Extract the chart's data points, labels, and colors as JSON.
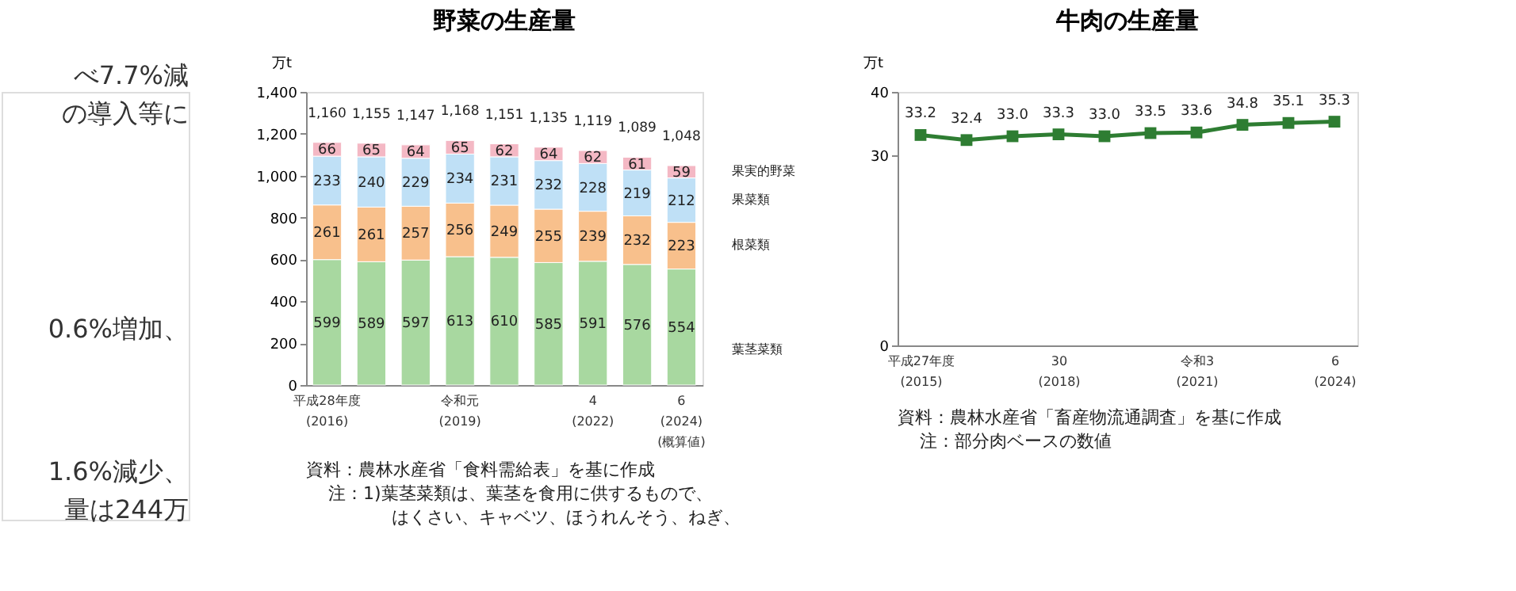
{
  "chart_data": [
    {
      "type": "other",
      "annotations": [
        "べ7.7%減",
        "の導入等に",
        "0.6%増加、",
        "1.6%減少、",
        "量は244万"
      ]
    },
    {
      "type": "bar",
      "title": "野菜の生産量",
      "ylabel": "万t",
      "stacked": true,
      "data_labels": true,
      "grid": false,
      "legend": "right",
      "categories": [
        "平成28年度\n(2016)",
        null,
        null,
        "令和元\n(2019)",
        null,
        null,
        "4\n(2022)",
        null,
        "6\n(2024)\n(概算値)"
      ],
      "ylim": [
        0,
        1400
      ],
      "yticks": [
        0,
        200,
        400,
        600,
        800,
        {
          "value": 1000,
          "label": "1,000"
        },
        {
          "value": 1200,
          "label": "1,200"
        },
        {
          "value": 1400,
          "label": "1,400"
        }
      ],
      "series": [
        {
          "name": "葉茎菜類",
          "color": "#a8d8a0",
          "values": [
            599,
            589,
            597,
            613,
            610,
            585,
            591,
            576,
            554
          ]
        },
        {
          "name": "根菜類",
          "color": "#f8c08c",
          "values": [
            261,
            261,
            257,
            256,
            249,
            255,
            239,
            232,
            223
          ]
        },
        {
          "name": "果菜類",
          "color": "#bfe0f6",
          "values": [
            233,
            240,
            229,
            234,
            231,
            232,
            228,
            219,
            212
          ]
        },
        {
          "name": "果実的野菜",
          "color": "#f4b8c4",
          "values": [
            66,
            65,
            64,
            65,
            62,
            64,
            62,
            61,
            59
          ]
        }
      ],
      "totals": [
        "1,160",
        "1,155",
        "1,147",
        "1,168",
        "1,151",
        "1,135",
        "1,119",
        "1,089",
        "1,048"
      ],
      "annotations": [
        "資料：農林水産省「食料需給表」を基に作成",
        "注：1)葉茎菜類は、葉茎を食用に供するもので、",
        "はくさい、キャベツ、ほうれんそう、ねぎ、"
      ]
    },
    {
      "type": "line",
      "title": "牛肉の生産量",
      "ylabel": "万t",
      "data_labels": true,
      "grid": false,
      "marker": "square",
      "line_style": "solid",
      "categories": [
        "平成27年度\n(2015)",
        null,
        null,
        "30\n(2018)",
        null,
        null,
        "令和3\n(2021)",
        null,
        null,
        "6\n(2024)"
      ],
      "ylim": [
        0,
        40
      ],
      "yticks": [
        0,
        30,
        40
      ],
      "series": [
        {
          "color": "#2e7d32",
          "values": [
            33.2,
            32.4,
            33.0,
            33.3,
            33.0,
            33.5,
            33.6,
            34.8,
            35.1,
            35.3
          ],
          "value_labels": [
            "33.2",
            "32.4",
            "33.0",
            "33.3",
            "33.0",
            "33.5",
            "33.6",
            "34.8",
            "35.1",
            "35.3"
          ]
        }
      ],
      "annotations": [
        "資料：農林水産省「畜産物流通調査」を基に作成",
        "注：部分肉ベースの数値"
      ]
    }
  ]
}
